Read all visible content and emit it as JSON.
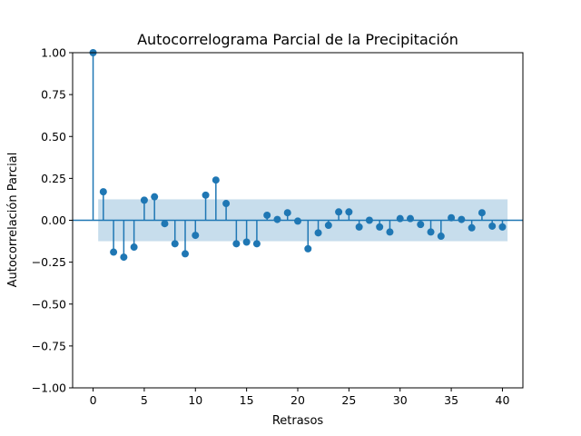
{
  "chart_data": {
    "type": "scatter",
    "subtype": "stem",
    "title": "Autocorrelograma Parcial de la Precipitación",
    "xlabel": "Retrasos",
    "ylabel": "Autocorrelación Parcial",
    "xlim": [
      -2,
      42
    ],
    "ylim": [
      -1.0,
      1.0
    ],
    "xticks": [
      "0",
      "5",
      "10",
      "15",
      "20",
      "25",
      "30",
      "35",
      "40"
    ],
    "yticks": [
      "−1.00",
      "−0.75",
      "−0.50",
      "−0.25",
      "0.00",
      "0.25",
      "0.50",
      "0.75",
      "1.00"
    ],
    "grid": false,
    "series": [
      {
        "x": [
          0,
          1,
          2,
          3,
          4,
          5,
          6,
          7,
          8,
          9,
          10,
          11,
          12,
          13,
          14,
          15,
          16,
          17,
          18,
          19,
          20,
          21,
          22,
          23,
          24,
          25,
          26,
          27,
          28,
          29,
          30,
          31,
          32,
          33,
          34,
          35,
          36,
          37,
          38,
          39,
          40
        ],
        "values": [
          1.0,
          0.17,
          -0.19,
          -0.22,
          -0.16,
          0.12,
          0.14,
          -0.02,
          -0.14,
          -0.2,
          -0.09,
          0.15,
          0.24,
          0.1,
          -0.14,
          -0.13,
          -0.14,
          0.03,
          0.005,
          0.045,
          -0.005,
          -0.17,
          -0.075,
          -0.03,
          0.05,
          0.05,
          -0.04,
          0.0,
          -0.04,
          -0.07,
          0.01,
          0.01,
          -0.025,
          -0.07,
          -0.095,
          0.015,
          0.005,
          -0.045,
          0.045,
          -0.035,
          -0.04
        ]
      }
    ],
    "confidence_band": {
      "x_range": [
        0.5,
        40.5
      ],
      "lower": -0.125,
      "upper": 0.125
    },
    "colors": {
      "stem": "#1f77b4",
      "band": "#1f77b4",
      "zero_line": "#1f77b4"
    }
  }
}
